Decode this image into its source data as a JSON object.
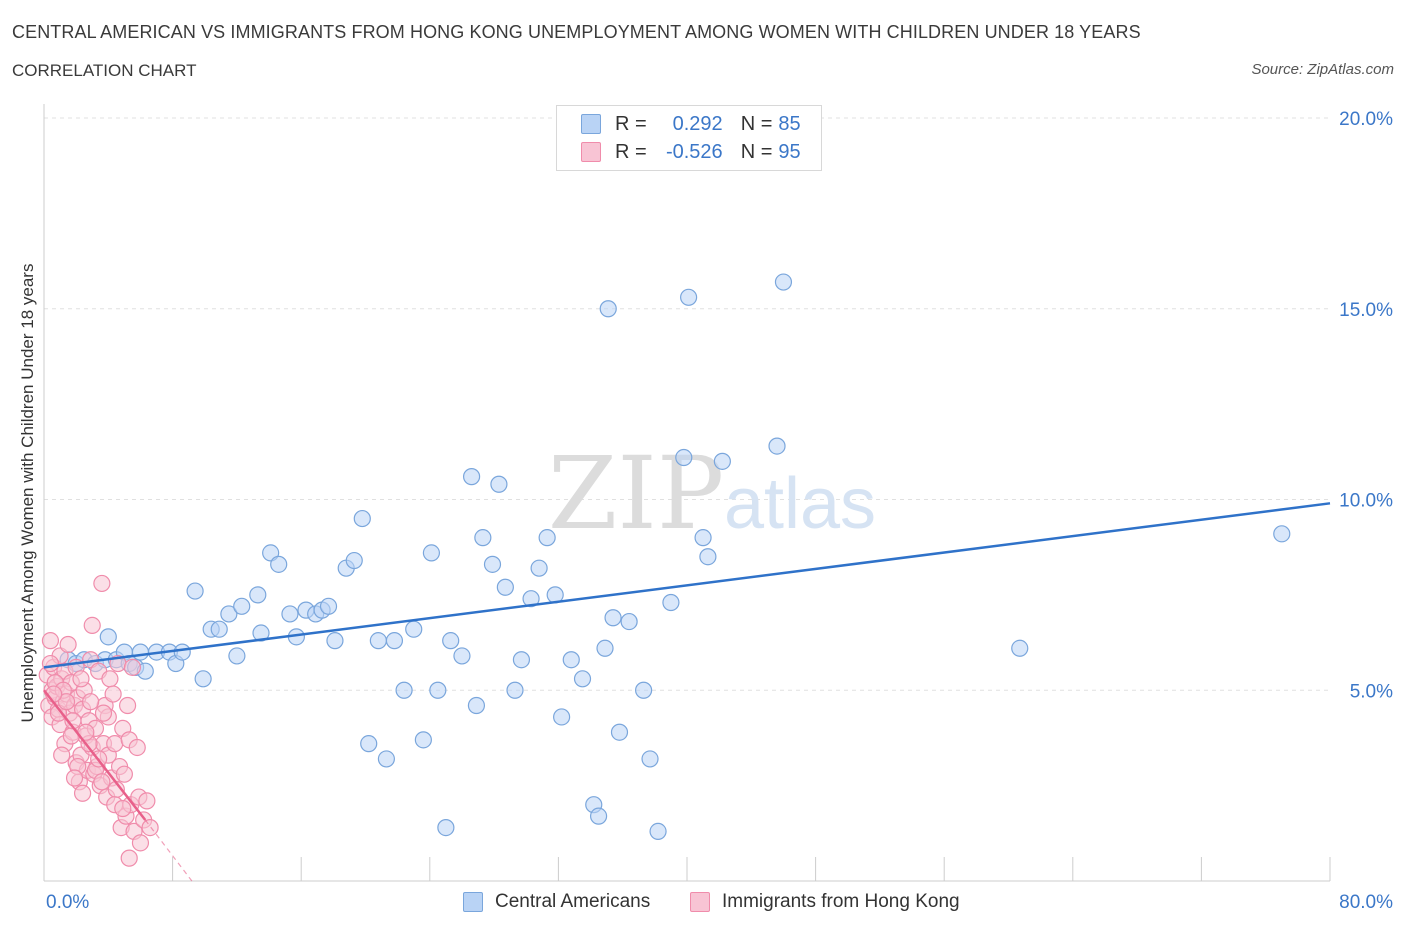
{
  "header": {
    "title": "CENTRAL AMERICAN VS IMMIGRANTS FROM HONG KONG UNEMPLOYMENT AMONG WOMEN WITH CHILDREN UNDER 18 YEARS",
    "subtitle": "CORRELATION CHART",
    "source": "Source: ZipAtlas.com"
  },
  "legend": {
    "r_label": "R =",
    "n_label": "N =",
    "series": [
      {
        "name": "Central Americans",
        "r": "0.292",
        "n": "85"
      },
      {
        "name": "Immigrants from Hong Kong",
        "r": "-0.526",
        "n": "95"
      }
    ]
  },
  "colors": {
    "blue_fill": "#b9d3f5",
    "blue_stroke": "#7aa6dc",
    "blue_line": "#2f72c9",
    "pink_fill": "#f8c4d4",
    "pink_stroke": "#f08cab",
    "pink_line": "#e8608a",
    "grid": "#e0e0e0",
    "tick_text": "#3b77c8"
  },
  "watermark": {
    "zip": "ZIP",
    "atlas": "atlas"
  },
  "chart_data": {
    "type": "scatter",
    "title": "CENTRAL AMERICAN VS IMMIGRANTS FROM HONG KONG UNEMPLOYMENT AMONG WOMEN WITH CHILDREN UNDER 18 YEARS",
    "xlabel": "",
    "ylabel": "Unemployment Among Women with Children Under 18 years",
    "xlim": [
      0,
      80
    ],
    "ylim": [
      0,
      20
    ],
    "x_tick_labels": [
      "0.0%",
      "80.0%"
    ],
    "y_ticks": [
      {
        "value": 5,
        "label": "5.0%"
      },
      {
        "value": 10,
        "label": "10.0%"
      },
      {
        "value": 15,
        "label": "15.0%"
      },
      {
        "value": 20,
        "label": "20.0%"
      }
    ],
    "series": [
      {
        "name": "Central Americans",
        "trend": {
          "x": [
            0,
            80
          ],
          "y": [
            5.6,
            9.9
          ]
        },
        "points": [
          [
            1.5,
            5.8
          ],
          [
            2.0,
            5.7
          ],
          [
            2.5,
            5.8
          ],
          [
            3.2,
            5.7
          ],
          [
            3.8,
            5.8
          ],
          [
            4.0,
            6.4
          ],
          [
            4.5,
            5.8
          ],
          [
            5.0,
            6.0
          ],
          [
            5.3,
            5.7
          ],
          [
            5.7,
            5.6
          ],
          [
            6.0,
            6.0
          ],
          [
            6.3,
            5.5
          ],
          [
            7.0,
            6.0
          ],
          [
            7.8,
            6.0
          ],
          [
            8.2,
            5.7
          ],
          [
            8.6,
            6.0
          ],
          [
            9.4,
            7.6
          ],
          [
            9.9,
            5.3
          ],
          [
            10.4,
            6.6
          ],
          [
            10.9,
            6.6
          ],
          [
            11.5,
            7.0
          ],
          [
            12.0,
            5.9
          ],
          [
            12.3,
            7.2
          ],
          [
            13.3,
            7.5
          ],
          [
            13.5,
            6.5
          ],
          [
            14.1,
            8.6
          ],
          [
            14.6,
            8.3
          ],
          [
            15.3,
            7.0
          ],
          [
            15.7,
            6.4
          ],
          [
            16.3,
            7.1
          ],
          [
            16.9,
            7.0
          ],
          [
            17.3,
            7.1
          ],
          [
            17.7,
            7.2
          ],
          [
            18.1,
            6.3
          ],
          [
            18.8,
            8.2
          ],
          [
            19.3,
            8.4
          ],
          [
            19.8,
            9.5
          ],
          [
            20.2,
            3.6
          ],
          [
            20.8,
            6.3
          ],
          [
            21.3,
            3.2
          ],
          [
            21.8,
            6.3
          ],
          [
            22.4,
            5.0
          ],
          [
            23.0,
            6.6
          ],
          [
            23.6,
            3.7
          ],
          [
            24.1,
            8.6
          ],
          [
            24.5,
            5.0
          ],
          [
            25.0,
            1.4
          ],
          [
            25.3,
            6.3
          ],
          [
            26.0,
            5.9
          ],
          [
            26.6,
            10.6
          ],
          [
            26.9,
            4.6
          ],
          [
            27.3,
            9.0
          ],
          [
            27.9,
            8.3
          ],
          [
            28.3,
            10.4
          ],
          [
            28.7,
            7.7
          ],
          [
            29.3,
            5.0
          ],
          [
            29.7,
            5.8
          ],
          [
            30.3,
            7.4
          ],
          [
            30.8,
            8.2
          ],
          [
            31.3,
            9.0
          ],
          [
            31.8,
            7.5
          ],
          [
            32.2,
            4.3
          ],
          [
            32.8,
            5.8
          ],
          [
            33.5,
            5.3
          ],
          [
            34.2,
            2.0
          ],
          [
            34.5,
            1.7
          ],
          [
            34.9,
            6.1
          ],
          [
            35.1,
            15.0
          ],
          [
            35.4,
            6.9
          ],
          [
            35.8,
            3.9
          ],
          [
            36.4,
            6.8
          ],
          [
            37.3,
            5.0
          ],
          [
            37.7,
            3.2
          ],
          [
            38.2,
            1.3
          ],
          [
            39.0,
            7.3
          ],
          [
            39.8,
            11.1
          ],
          [
            40.1,
            15.3
          ],
          [
            41.0,
            9.0
          ],
          [
            41.3,
            8.5
          ],
          [
            42.2,
            11.0
          ],
          [
            45.6,
            11.4
          ],
          [
            46.0,
            15.7
          ],
          [
            60.7,
            6.1
          ],
          [
            77.0,
            9.1
          ]
        ]
      },
      {
        "name": "Immigrants from Hong Kong",
        "trend": {
          "x": [
            0,
            6.3
          ],
          "y": [
            5.0,
            1.6
          ]
        },
        "trend_dashed": {
          "x": [
            6.3,
            9.2
          ],
          "y": [
            1.6,
            0.0
          ]
        },
        "points": [
          [
            0.2,
            5.4
          ],
          [
            0.3,
            4.6
          ],
          [
            0.4,
            6.3
          ],
          [
            0.5,
            5.0
          ],
          [
            0.5,
            4.3
          ],
          [
            0.6,
            5.6
          ],
          [
            0.7,
            4.8
          ],
          [
            0.8,
            5.1
          ],
          [
            0.9,
            4.5
          ],
          [
            1.0,
            5.9
          ],
          [
            1.0,
            4.1
          ],
          [
            1.1,
            5.3
          ],
          [
            1.2,
            4.7
          ],
          [
            1.3,
            5.5
          ],
          [
            1.3,
            3.6
          ],
          [
            1.4,
            4.9
          ],
          [
            1.5,
            6.2
          ],
          [
            1.6,
            4.4
          ],
          [
            1.7,
            5.2
          ],
          [
            1.8,
            3.9
          ],
          [
            1.9,
            4.6
          ],
          [
            2.0,
            5.6
          ],
          [
            2.0,
            3.1
          ],
          [
            2.1,
            4.8
          ],
          [
            2.2,
            2.6
          ],
          [
            2.3,
            3.3
          ],
          [
            2.4,
            4.5
          ],
          [
            2.5,
            5.0
          ],
          [
            2.6,
            3.8
          ],
          [
            2.7,
            2.9
          ],
          [
            2.8,
            4.2
          ],
          [
            2.9,
            5.8
          ],
          [
            3.0,
            3.5
          ],
          [
            3.0,
            6.7
          ],
          [
            3.1,
            2.8
          ],
          [
            3.2,
            4.0
          ],
          [
            3.3,
            3.0
          ],
          [
            3.4,
            5.5
          ],
          [
            3.5,
            2.5
          ],
          [
            3.6,
            7.8
          ],
          [
            3.7,
            3.6
          ],
          [
            3.8,
            4.6
          ],
          [
            3.9,
            2.2
          ],
          [
            4.0,
            3.3
          ],
          [
            4.1,
            5.3
          ],
          [
            4.2,
            2.7
          ],
          [
            4.3,
            4.9
          ],
          [
            4.4,
            3.6
          ],
          [
            4.5,
            2.4
          ],
          [
            4.6,
            5.7
          ],
          [
            4.7,
            3.0
          ],
          [
            4.8,
            1.4
          ],
          [
            4.9,
            4.0
          ],
          [
            5.0,
            2.8
          ],
          [
            5.1,
            1.7
          ],
          [
            5.2,
            4.6
          ],
          [
            5.3,
            3.7
          ],
          [
            5.4,
            2.0
          ],
          [
            5.5,
            5.6
          ],
          [
            5.6,
            1.3
          ],
          [
            5.8,
            3.5
          ],
          [
            5.9,
            2.2
          ],
          [
            6.0,
            1.0
          ],
          [
            6.2,
            1.6
          ],
          [
            6.4,
            2.1
          ],
          [
            6.6,
            1.4
          ],
          [
            0.4,
            5.7
          ],
          [
            0.7,
            5.2
          ],
          [
            0.9,
            4.4
          ],
          [
            1.2,
            5.0
          ],
          [
            1.4,
            4.7
          ],
          [
            1.7,
            3.8
          ],
          [
            2.1,
            3.0
          ],
          [
            2.4,
            2.3
          ],
          [
            2.8,
            3.6
          ],
          [
            3.2,
            2.9
          ],
          [
            3.6,
            2.6
          ],
          [
            4.0,
            4.3
          ],
          [
            4.4,
            2.0
          ],
          [
            5.3,
            0.6
          ],
          [
            1.8,
            4.2
          ],
          [
            2.6,
            3.9
          ],
          [
            3.4,
            3.2
          ],
          [
            0.6,
            4.9
          ],
          [
            1.1,
            3.3
          ],
          [
            1.9,
            2.7
          ],
          [
            2.3,
            5.3
          ],
          [
            2.9,
            4.7
          ],
          [
            3.7,
            4.4
          ],
          [
            4.9,
            1.9
          ]
        ]
      }
    ]
  }
}
